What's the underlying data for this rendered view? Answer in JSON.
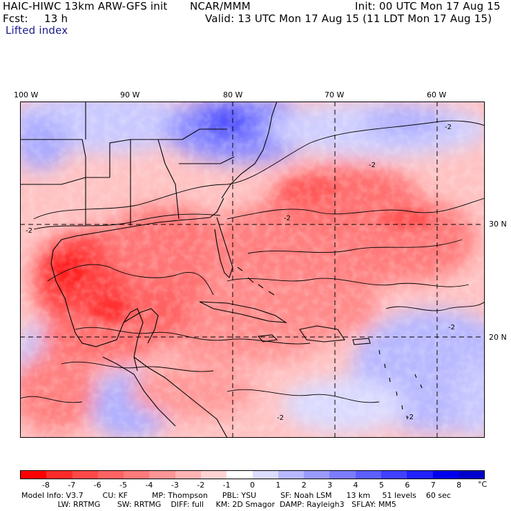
{
  "header": {
    "model": "HAIC-HIWC 13km ARW-GFS init",
    "org": "NCAR/MMM",
    "init": "Init: 00 UTC Mon 17 Aug 15",
    "fcst_label": "Fcst:",
    "fcst_value": "13 h",
    "valid": "Valid: 13 UTC Mon 17 Aug 15 (11 LDT Mon 17 Aug 15)",
    "field": "Lifted index"
  },
  "map": {
    "lon_labels": [
      "100 W",
      "90 W",
      "80 W",
      "70 W",
      "60 W"
    ],
    "lat_labels": [
      "30 N",
      "20 N"
    ],
    "contour_label": "-2",
    "colors": {
      "land_border": "#000000",
      "graticule": "#000000"
    }
  },
  "colorbar": {
    "ticks": [
      "-8",
      "-7",
      "-6",
      "-5",
      "-4",
      "-3",
      "-2",
      "-1",
      "0",
      "1",
      "2",
      "3",
      "4",
      "5",
      "6",
      "7",
      "8"
    ],
    "unit": "°C",
    "colors": [
      "#ff0000",
      "#ff2a2a",
      "#ff4848",
      "#ff6262",
      "#ff7a7a",
      "#ff9595",
      "#ffb3b3",
      "#ffd3d3",
      "#ffffff",
      "#dcdcff",
      "#b8b8ff",
      "#9a9aff",
      "#7c7cff",
      "#5e5eff",
      "#4040ff",
      "#2222ff",
      "#0000ee"
    ]
  },
  "model_info": {
    "line1": "Model Info: V3.7        CU: KF          MP: Thompson      PBL: YSU          SF: Noah LSM      13 km     51 levels    60 sec",
    "line2": "               LW: RRTMG       SW: RRTMG    DIFF: full     KM: 2D Smagor  DAMP: Rayleigh3   SFLAY: MM5"
  }
}
